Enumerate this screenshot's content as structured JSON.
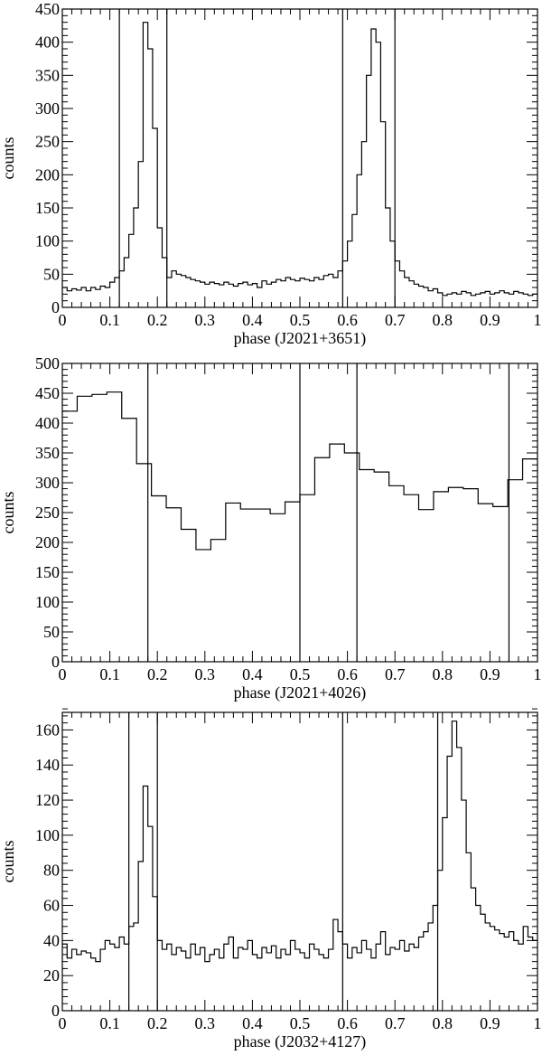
{
  "chart_data": [
    {
      "type": "histogram",
      "xlabel": "phase (J2021+3651)",
      "ylabel": "counts",
      "xlim": [
        0,
        1
      ],
      "ylim": [
        0,
        450
      ],
      "x_ticks": [
        0,
        0.1,
        0.2,
        0.3,
        0.4,
        0.5,
        0.6,
        0.7,
        0.8,
        0.9,
        1
      ],
      "x_tick_labels": [
        "0",
        "0.1",
        "0.2",
        "0.3",
        "0.4",
        "0.5",
        "0.6",
        "0.7",
        "0.8",
        "0.9",
        "1"
      ],
      "y_ticks": [
        0,
        50,
        100,
        150,
        200,
        250,
        300,
        350,
        400,
        450
      ],
      "y_tick_labels": [
        "0",
        "50",
        "100",
        "150",
        "200",
        "250",
        "300",
        "350",
        "400",
        "450"
      ],
      "minor_x": 0.02,
      "minor_y": 10,
      "bins": 100,
      "values": [
        30,
        25,
        28,
        26,
        30,
        25,
        30,
        27,
        32,
        30,
        38,
        45,
        55,
        75,
        110,
        150,
        220,
        430,
        390,
        270,
        120,
        75,
        45,
        55,
        50,
        48,
        45,
        42,
        40,
        38,
        35,
        38,
        36,
        34,
        38,
        35,
        32,
        36,
        38,
        34,
        36,
        30,
        40,
        35,
        38,
        42,
        40,
        45,
        42,
        40,
        44,
        42,
        40,
        45,
        42,
        48,
        50,
        45,
        55,
        70,
        100,
        140,
        200,
        250,
        350,
        420,
        400,
        280,
        150,
        100,
        70,
        55,
        45,
        40,
        35,
        32,
        30,
        25,
        28,
        22,
        18,
        20,
        22,
        20,
        24,
        22,
        18,
        20,
        22,
        24,
        20,
        22,
        25,
        22,
        20,
        24,
        22,
        20,
        18,
        20
      ],
      "vlines": [
        0.12,
        0.22,
        0.59,
        0.7
      ]
    },
    {
      "type": "histogram",
      "xlabel": "phase (J2021+4026)",
      "ylabel": "counts",
      "xlim": [
        0,
        1
      ],
      "ylim": [
        0,
        500
      ],
      "x_ticks": [
        0,
        0.1,
        0.2,
        0.3,
        0.4,
        0.5,
        0.6,
        0.7,
        0.8,
        0.9,
        1
      ],
      "x_tick_labels": [
        "0",
        "0.1",
        "0.2",
        "0.3",
        "0.4",
        "0.5",
        "0.6",
        "0.7",
        "0.8",
        "0.9",
        "1"
      ],
      "y_ticks": [
        0,
        50,
        100,
        150,
        200,
        250,
        300,
        350,
        400,
        450,
        500
      ],
      "y_tick_labels": [
        "0",
        "50",
        "100",
        "150",
        "200",
        "250",
        "300",
        "350",
        "400",
        "450",
        "500"
      ],
      "minor_x": 0.02,
      "minor_y": 10,
      "bins": 32,
      "values": [
        420,
        445,
        448,
        452,
        408,
        332,
        278,
        258,
        222,
        188,
        205,
        266,
        256,
        256,
        248,
        268,
        280,
        342,
        365,
        350,
        322,
        318,
        295,
        280,
        255,
        285,
        292,
        290,
        265,
        260,
        305,
        340
      ],
      "vlines": [
        0.18,
        0.5,
        0.62,
        0.94
      ]
    },
    {
      "type": "histogram",
      "xlabel": "phase (J2032+4127)",
      "ylabel": "counts",
      "xlim": [
        0,
        1
      ],
      "ylim": [
        0,
        170
      ],
      "x_ticks": [
        0,
        0.1,
        0.2,
        0.3,
        0.4,
        0.5,
        0.6,
        0.7,
        0.8,
        0.9,
        1
      ],
      "x_tick_labels": [
        "0",
        "0.1",
        "0.2",
        "0.3",
        "0.4",
        "0.5",
        "0.6",
        "0.7",
        "0.8",
        "0.9",
        "1"
      ],
      "y_ticks": [
        0,
        20,
        40,
        60,
        80,
        100,
        120,
        140,
        160
      ],
      "y_tick_labels": [
        "0",
        "20",
        "40",
        "60",
        "80",
        "100",
        "120",
        "140",
        "160"
      ],
      "minor_x": 0.02,
      "minor_y": 4,
      "bins": 100,
      "values": [
        38,
        30,
        35,
        32,
        34,
        33,
        30,
        28,
        35,
        40,
        38,
        36,
        42,
        38,
        48,
        50,
        85,
        128,
        105,
        65,
        40,
        35,
        38,
        32,
        36,
        34,
        30,
        38,
        32,
        36,
        28,
        32,
        35,
        30,
        38,
        42,
        30,
        36,
        35,
        40,
        32,
        30,
        36,
        33,
        37,
        30,
        35,
        32,
        40,
        35,
        33,
        30,
        38,
        35,
        32,
        30,
        35,
        52,
        45,
        38,
        30,
        36,
        33,
        40,
        35,
        30,
        38,
        45,
        32,
        36,
        35,
        40,
        34,
        38,
        36,
        42,
        45,
        50,
        60,
        80,
        110,
        145,
        165,
        150,
        120,
        90,
        70,
        60,
        55,
        50,
        48,
        46,
        44,
        42,
        45,
        40,
        38,
        48,
        42,
        40
      ],
      "vlines": [
        0.14,
        0.2,
        0.59,
        0.79
      ]
    }
  ]
}
